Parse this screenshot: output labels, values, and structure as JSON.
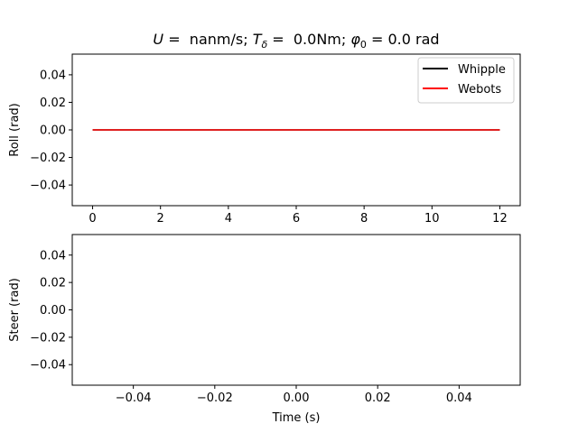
{
  "chart_data": [
    {
      "type": "line",
      "title": "U = nanm/s; T_δ = 0.0Nm; φ_0 = 0.0 rad",
      "title_parts": {
        "u_var": "U",
        "u_text": " =  nanm/s; ",
        "t_var": "T",
        "t_sub": "δ",
        "t_text": " =  0.0Nm; ",
        "phi_var": "φ",
        "phi_sub": "0",
        "phi_text": " = 0.0 rad"
      },
      "xlabel": "",
      "ylabel": "Roll (rad)",
      "xlim": [
        -0.6,
        12.6
      ],
      "ylim": [
        -0.055,
        0.055
      ],
      "xticks": [
        0,
        2,
        4,
        6,
        8,
        10,
        12
      ],
      "xtick_labels": [
        "0",
        "2",
        "4",
        "6",
        "8",
        "10",
        "12"
      ],
      "yticks": [
        -0.04,
        -0.02,
        0.0,
        0.02,
        0.04
      ],
      "ytick_labels": [
        "−0.04",
        "−0.02",
        "0.00",
        "0.02",
        "0.04"
      ],
      "grid": false,
      "legend_position": "top-right",
      "series": [
        {
          "name": "Whipple",
          "color": "#000000",
          "x": [
            0,
            12
          ],
          "y": [
            0.0,
            0.0
          ]
        },
        {
          "name": "Webots",
          "color": "#ff0000",
          "x": [
            0,
            12
          ],
          "y": [
            0.0,
            0.0
          ]
        }
      ]
    },
    {
      "type": "line",
      "title": "",
      "xlabel": "Time (s)",
      "ylabel": "Steer (rad)",
      "xlim": [
        -0.055,
        0.055
      ],
      "ylim": [
        -0.055,
        0.055
      ],
      "xticks": [
        -0.04,
        -0.02,
        0.0,
        0.02,
        0.04
      ],
      "xtick_labels": [
        "−0.04",
        "−0.02",
        "0.00",
        "0.02",
        "0.04"
      ],
      "yticks": [
        -0.04,
        -0.02,
        0.0,
        0.02,
        0.04
      ],
      "ytick_labels": [
        "−0.04",
        "−0.02",
        "0.00",
        "0.02",
        "0.04"
      ],
      "grid": false,
      "series": []
    }
  ]
}
